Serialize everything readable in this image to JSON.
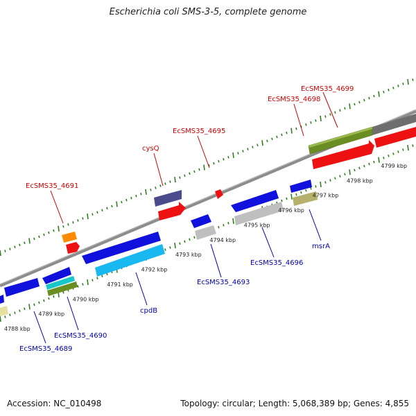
{
  "title": "Escherichia coli SMS-3-5, complete genome",
  "footer": {
    "accession": "Accession: NC_010498",
    "summary": "Topology: circular; Length: 5,068,389 bp; Genes: 4,855"
  },
  "scale": {
    "unit": "kbp",
    "ticks": [
      {
        "kbp": 4788,
        "label": "4788 kbp"
      },
      {
        "kbp": 4789,
        "label": "4789 kbp"
      },
      {
        "kbp": 4790,
        "label": "4790 kbp"
      },
      {
        "kbp": 4791,
        "label": "4791 kbp"
      },
      {
        "kbp": 4792,
        "label": "4792 kbp"
      },
      {
        "kbp": 4793,
        "label": "4793 kbp"
      },
      {
        "kbp": 4794,
        "label": "4794 kbp"
      },
      {
        "kbp": 4795,
        "label": "4795 kbp"
      },
      {
        "kbp": 4796,
        "label": "4796 kbp"
      },
      {
        "kbp": 4797,
        "label": "4797 kbp"
      },
      {
        "kbp": 4798,
        "label": "4798 kbp"
      },
      {
        "kbp": 4799,
        "label": "4799 kbp"
      }
    ]
  },
  "colors": {
    "forward_label": "#cc0000",
    "reverse_label": "#0000aa",
    "backbone": "#8c8c8c",
    "tick": "#2e7d1e"
  },
  "gene_labels": [
    {
      "id": "EcSMS35_4699",
      "text": "EcSMS35_4699",
      "strand": "forward"
    },
    {
      "id": "EcSMS35_4698",
      "text": "EcSMS35_4698",
      "strand": "forward"
    },
    {
      "id": "EcSMS35_4695",
      "text": "EcSMS35_4695",
      "strand": "forward"
    },
    {
      "id": "cysQ",
      "text": "cysQ",
      "strand": "forward"
    },
    {
      "id": "EcSMS35_4691",
      "text": "EcSMS35_4691",
      "strand": "forward"
    },
    {
      "id": "msrA",
      "text": "msrA",
      "strand": "reverse"
    },
    {
      "id": "EcSMS35_4696",
      "text": "EcSMS35_4696",
      "strand": "reverse"
    },
    {
      "id": "EcSMS35_4693",
      "text": "EcSMS35_4693",
      "strand": "reverse"
    },
    {
      "id": "cpdB",
      "text": "cpdB",
      "strand": "reverse"
    },
    {
      "id": "EcSMS35_4690",
      "text": "EcSMS35_4690",
      "strand": "reverse"
    },
    {
      "id": "EcSMS35_4689",
      "text": "EcSMS35_4689",
      "strand": "reverse"
    }
  ]
}
